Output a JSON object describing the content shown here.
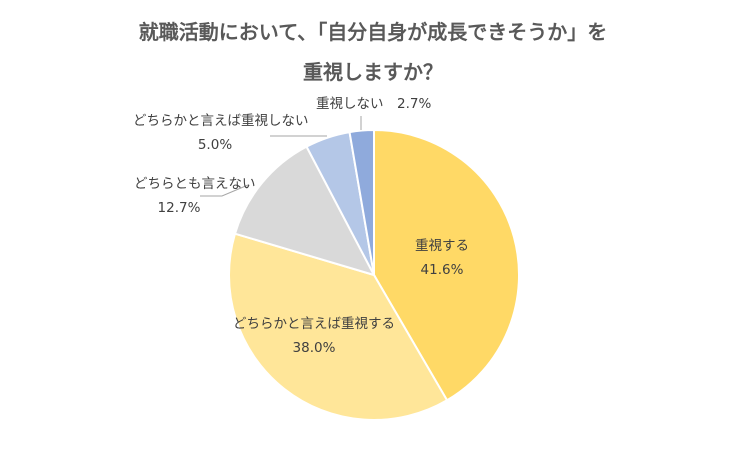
{
  "chart_data": {
    "type": "pie",
    "title_lines": [
      "就職活動において、「自分自身が成長できそうか」を",
      "重視しますか？"
    ],
    "categories": [
      "重視する",
      "どちらかと言えば重視する",
      "どちらとも言えない",
      "どちらかと言えば重視しない",
      "重視しない"
    ],
    "values": [
      41.6,
      38.0,
      12.7,
      5.0,
      2.7
    ],
    "value_labels": [
      "41.6%",
      "38.0%",
      "12.7%",
      "5.0%",
      "2.7%"
    ],
    "colors": [
      "#FFD966",
      "#FFE699",
      "#D9D9D9",
      "#B4C7E7",
      "#8FAADC"
    ],
    "legend": "none"
  }
}
